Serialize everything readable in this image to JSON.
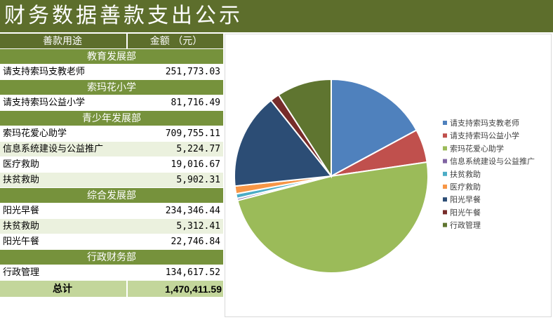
{
  "title": "财务数据善款支出公示",
  "table": {
    "header_usage": "善款用途",
    "header_amount": "金额 （元）",
    "total_label": "总计",
    "total_value": "1,470,411.59",
    "sections": [
      {
        "name": "教育发展部",
        "items": [
          {
            "label": "请支持索玛支教老师",
            "amount": "251,773.03"
          }
        ]
      },
      {
        "name": "索玛花小学",
        "items": [
          {
            "label": "请支持索玛公益小学",
            "amount": "81,716.49"
          }
        ]
      },
      {
        "name": "青少年发展部",
        "items": [
          {
            "label": "索玛花爱心助学",
            "amount": "709,755.11"
          },
          {
            "label": "信息系统建设与公益推广",
            "amount": "5,224.77"
          },
          {
            "label": "医疗救助",
            "amount": "19,016.67"
          },
          {
            "label": "扶贫救助",
            "amount": "5,902.31"
          }
        ]
      },
      {
        "name": "综合发展部",
        "items": [
          {
            "label": "阳光早餐",
            "amount": "234,346.44"
          },
          {
            "label": "扶贫救助",
            "amount": "5,312.41"
          },
          {
            "label": "阳光午餐",
            "amount": "22,746.84"
          }
        ]
      },
      {
        "name": "行政财务部",
        "items": [
          {
            "label": "行政管理",
            "amount": "134,617.52"
          }
        ]
      }
    ]
  },
  "chart_data": {
    "type": "pie",
    "title": "",
    "legend_position": "right",
    "categories": [
      "请支持索玛支教老师",
      "请支持索玛公益小学",
      "索玛花爱心助学",
      "信息系统建设与公益推广",
      "扶贫救助",
      "医疗救助",
      "阳光早餐",
      "阳光午餐",
      "行政管理"
    ],
    "values": [
      251773.03,
      81716.49,
      709755.11,
      5224.77,
      11214.72,
      19016.67,
      234346.44,
      22746.84,
      134617.52
    ],
    "colors": [
      "#4f81bd",
      "#c0504d",
      "#9bbb59",
      "#8064a2",
      "#4bacc6",
      "#f79646",
      "#2c4d75",
      "#772c2a",
      "#5f7530"
    ]
  }
}
